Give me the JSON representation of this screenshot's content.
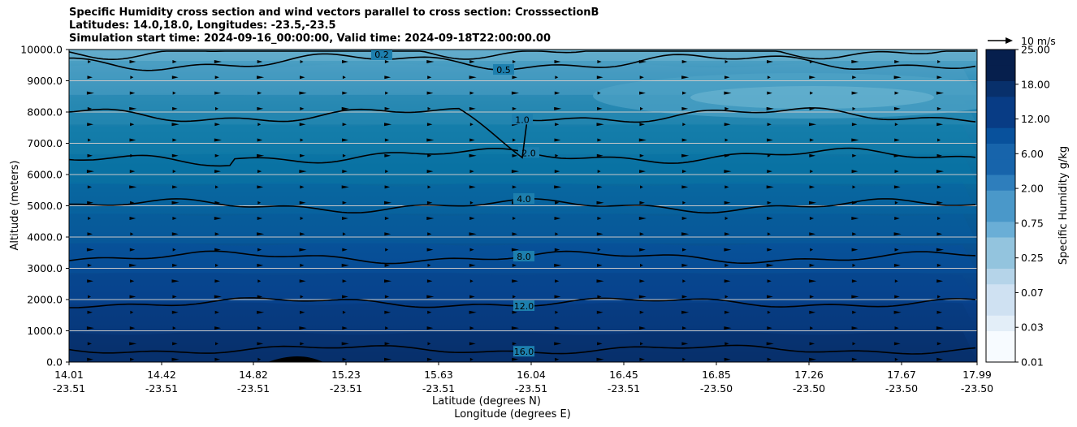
{
  "title": {
    "line1": "Specific Humidity cross section and wind vectors parallel to cross section: CrosssectionB",
    "line2": "Latitudes: 14.0,18.0, Longitudes: -23.5,-23.5",
    "line3": "Simulation start time: 2024-09-16_00:00:00, Valid time: 2024-09-18T22:00:00.00"
  },
  "chart_data": {
    "type": "contour",
    "title": "Specific Humidity cross section and wind vectors parallel to cross section: CrosssectionB",
    "ylabel": "Altitude (meters)",
    "xlabel_lat": "Latitude (degrees N)",
    "xlabel_lon": "Longitude (degrees E)",
    "ylim": [
      0,
      10000
    ],
    "y_ticks": [
      "0.0",
      "1000.0",
      "2000.0",
      "3000.0",
      "4000.0",
      "5000.0",
      "6000.0",
      "7000.0",
      "8000.0",
      "9000.0",
      "10000.0"
    ],
    "x_ticks": [
      {
        "lat": "14.01",
        "lon": "-23.51"
      },
      {
        "lat": "14.42",
        "lon": "-23.51"
      },
      {
        "lat": "14.82",
        "lon": "-23.51"
      },
      {
        "lat": "15.23",
        "lon": "-23.51"
      },
      {
        "lat": "15.63",
        "lon": "-23.51"
      },
      {
        "lat": "16.04",
        "lon": "-23.51"
      },
      {
        "lat": "16.45",
        "lon": "-23.51"
      },
      {
        "lat": "16.85",
        "lon": "-23.50"
      },
      {
        "lat": "17.26",
        "lon": "-23.50"
      },
      {
        "lat": "17.67",
        "lon": "-23.50"
      },
      {
        "lat": "17.99",
        "lon": "-23.50"
      }
    ],
    "colorbar": {
      "label": "Specific Humidity g/kg",
      "ticks": [
        "0.01",
        "0.03",
        "0.07",
        "0.25",
        "0.75",
        "2.00",
        "6.00",
        "12.00",
        "18.00",
        "25.00"
      ]
    },
    "contour_lines": [
      {
        "level": "16.0",
        "altitude_m": 400
      },
      {
        "level": "12.0",
        "altitude_m": 1900
      },
      {
        "level": "8.0",
        "altitude_m": 3350
      },
      {
        "level": "4.0",
        "altitude_m": 5000
      },
      {
        "level": "2.0",
        "altitude_m": 6600
      },
      {
        "level": "1.0",
        "altitude_m": 7900
      },
      {
        "level": "0.5",
        "altitude_m": 9600
      },
      {
        "level": "0.2",
        "altitude_m": 10000
      }
    ],
    "wind_key": "10 m/s"
  }
}
